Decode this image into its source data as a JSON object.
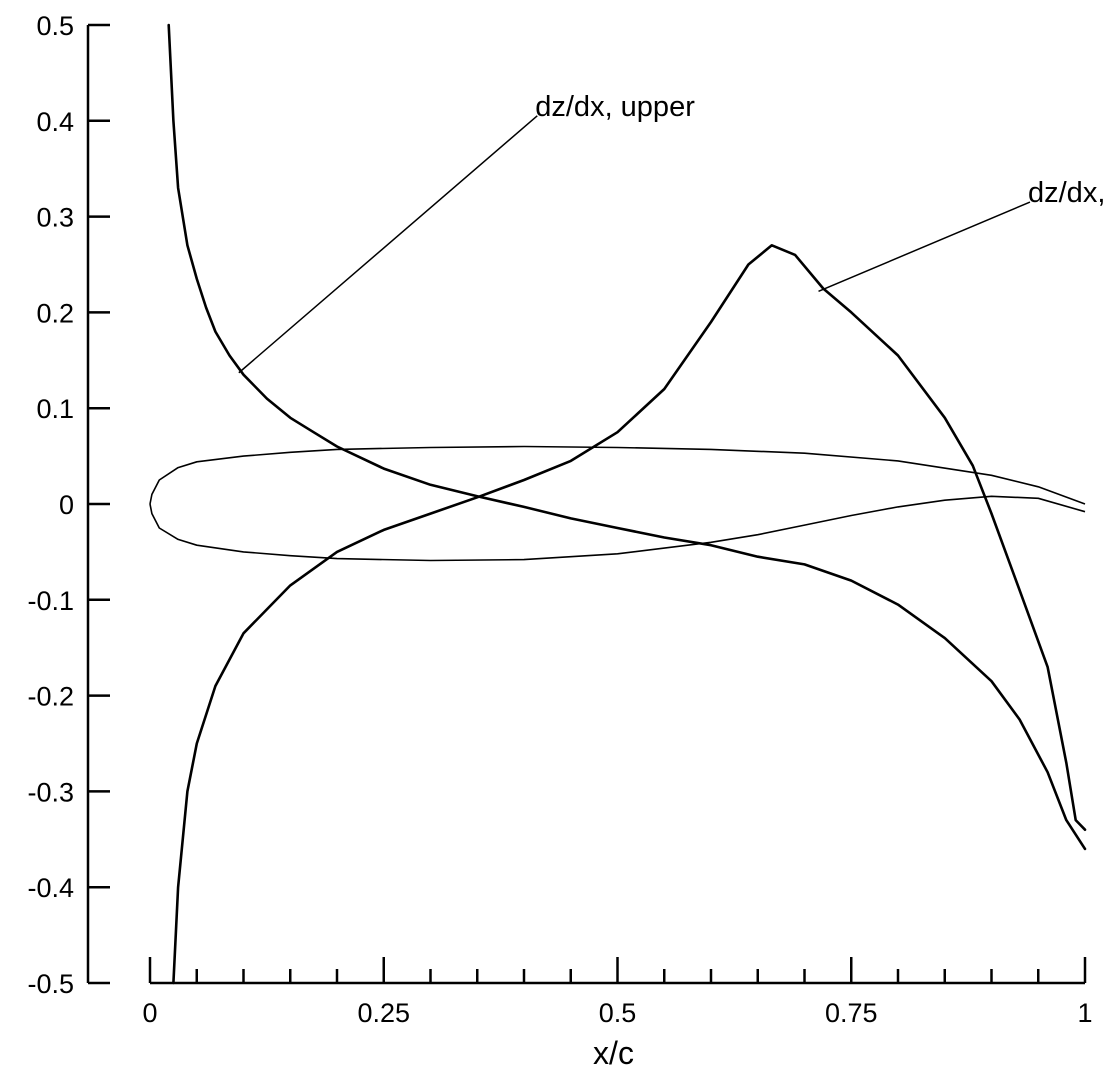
{
  "chart_data": {
    "type": "line",
    "title": "",
    "xlabel": "x/c",
    "ylabel": "",
    "xlim": [
      0,
      1
    ],
    "ylim": [
      -0.5,
      0.5
    ],
    "grid": false,
    "x_ticks": [
      {
        "value": 0,
        "label": "0"
      },
      {
        "value": 0.25,
        "label": "0.25"
      },
      {
        "value": 0.5,
        "label": "0.5"
      },
      {
        "value": 0.75,
        "label": "0.75"
      },
      {
        "value": 1,
        "label": "1"
      }
    ],
    "x_minor_ticks": [
      0.05,
      0.1,
      0.15,
      0.2,
      0.3,
      0.35,
      0.4,
      0.45,
      0.55,
      0.6,
      0.65,
      0.7,
      0.8,
      0.85,
      0.9,
      0.95
    ],
    "y_ticks": [
      {
        "value": 0.5,
        "label": "0.5"
      },
      {
        "value": 0.4,
        "label": "0.4"
      },
      {
        "value": 0.3,
        "label": "0.3"
      },
      {
        "value": 0.2,
        "label": "0.2"
      },
      {
        "value": 0.1,
        "label": "0.1"
      },
      {
        "value": 0,
        "label": "0"
      },
      {
        "value": -0.1,
        "label": "-0.1"
      },
      {
        "value": -0.2,
        "label": "-0.2"
      },
      {
        "value": -0.3,
        "label": "-0.3"
      },
      {
        "value": -0.4,
        "label": "-0.4"
      },
      {
        "value": -0.5,
        "label": "-0.5"
      }
    ],
    "series": [
      {
        "name": "dz/dx, upper",
        "points": [
          [
            0.02,
            0.5
          ],
          [
            0.025,
            0.4
          ],
          [
            0.03,
            0.33
          ],
          [
            0.04,
            0.27
          ],
          [
            0.05,
            0.235
          ],
          [
            0.06,
            0.205
          ],
          [
            0.07,
            0.18
          ],
          [
            0.085,
            0.155
          ],
          [
            0.1,
            0.135
          ],
          [
            0.125,
            0.11
          ],
          [
            0.15,
            0.09
          ],
          [
            0.175,
            0.075
          ],
          [
            0.2,
            0.06
          ],
          [
            0.25,
            0.037
          ],
          [
            0.3,
            0.02
          ],
          [
            0.35,
            0.008
          ],
          [
            0.4,
            -0.003
          ],
          [
            0.45,
            -0.015
          ],
          [
            0.5,
            -0.025
          ],
          [
            0.55,
            -0.035
          ],
          [
            0.6,
            -0.043
          ],
          [
            0.65,
            -0.055
          ],
          [
            0.7,
            -0.063
          ],
          [
            0.75,
            -0.08
          ],
          [
            0.8,
            -0.105
          ],
          [
            0.85,
            -0.14
          ],
          [
            0.9,
            -0.185
          ],
          [
            0.93,
            -0.225
          ],
          [
            0.96,
            -0.28
          ],
          [
            0.98,
            -0.33
          ],
          [
            1.0,
            -0.36
          ]
        ]
      },
      {
        "name": "dz/dx, lower",
        "points": [
          [
            0.025,
            -0.5
          ],
          [
            0.03,
            -0.4
          ],
          [
            0.04,
            -0.3
          ],
          [
            0.05,
            -0.25
          ],
          [
            0.07,
            -0.19
          ],
          [
            0.1,
            -0.135
          ],
          [
            0.15,
            -0.085
          ],
          [
            0.2,
            -0.05
          ],
          [
            0.25,
            -0.027
          ],
          [
            0.3,
            -0.01
          ],
          [
            0.35,
            0.007
          ],
          [
            0.4,
            0.025
          ],
          [
            0.45,
            0.045
          ],
          [
            0.5,
            0.075
          ],
          [
            0.55,
            0.12
          ],
          [
            0.6,
            0.19
          ],
          [
            0.64,
            0.25
          ],
          [
            0.665,
            0.27
          ],
          [
            0.69,
            0.26
          ],
          [
            0.72,
            0.225
          ],
          [
            0.75,
            0.2
          ],
          [
            0.8,
            0.155
          ],
          [
            0.85,
            0.09
          ],
          [
            0.88,
            0.04
          ],
          [
            0.9,
            -0.01
          ],
          [
            0.93,
            -0.09
          ],
          [
            0.96,
            -0.17
          ],
          [
            0.98,
            -0.27
          ],
          [
            0.99,
            -0.33
          ],
          [
            1.0,
            -0.34
          ]
        ]
      }
    ],
    "airfoil": {
      "upper": [
        [
          0,
          0
        ],
        [
          0.002,
          0.01
        ],
        [
          0.01,
          0.025
        ],
        [
          0.03,
          0.038
        ],
        [
          0.05,
          0.044
        ],
        [
          0.1,
          0.05
        ],
        [
          0.15,
          0.054
        ],
        [
          0.2,
          0.057
        ],
        [
          0.3,
          0.059
        ],
        [
          0.4,
          0.06
        ],
        [
          0.5,
          0.059
        ],
        [
          0.6,
          0.057
        ],
        [
          0.7,
          0.053
        ],
        [
          0.8,
          0.045
        ],
        [
          0.9,
          0.03
        ],
        [
          0.95,
          0.018
        ],
        [
          1.0,
          0.0
        ]
      ],
      "lower": [
        [
          0,
          0
        ],
        [
          0.002,
          -0.01
        ],
        [
          0.01,
          -0.025
        ],
        [
          0.03,
          -0.037
        ],
        [
          0.05,
          -0.043
        ],
        [
          0.1,
          -0.05
        ],
        [
          0.15,
          -0.054
        ],
        [
          0.2,
          -0.057
        ],
        [
          0.3,
          -0.059
        ],
        [
          0.4,
          -0.058
        ],
        [
          0.5,
          -0.052
        ],
        [
          0.6,
          -0.04
        ],
        [
          0.65,
          -0.032
        ],
        [
          0.7,
          -0.022
        ],
        [
          0.75,
          -0.012
        ],
        [
          0.8,
          -0.003
        ],
        [
          0.85,
          0.004
        ],
        [
          0.9,
          0.008
        ],
        [
          0.95,
          0.006
        ],
        [
          1.0,
          -0.008
        ]
      ]
    },
    "annotations": [
      {
        "text": "dz/dx, upper",
        "anchor": [
          0.095,
          0.137
        ],
        "label_at": [
          0.273,
          0.4
        ]
      },
      {
        "text": "dz/dx, lower",
        "anchor": [
          0.715,
          0.222
        ],
        "label_at": [
          0.8,
          0.31
        ]
      }
    ]
  }
}
